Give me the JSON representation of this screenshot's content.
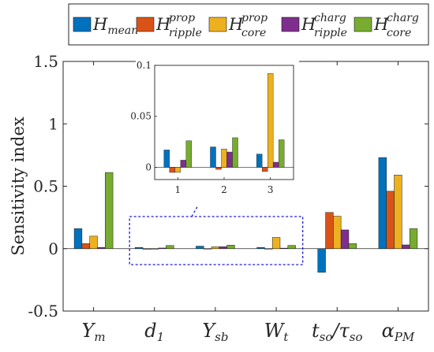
{
  "chart_data": {
    "type": "bar",
    "ylabel": "Sensitivity index",
    "ylim": [
      -0.5,
      1.5
    ],
    "yticks": [
      {
        "value": 1.5,
        "label": "1.5"
      },
      {
        "value": 1.0,
        "label": "1"
      },
      {
        "value": 0.5,
        "label": "0.5"
      },
      {
        "value": 0.0,
        "label": "0"
      },
      {
        "value": -0.5,
        "label": "-0.5"
      }
    ],
    "categories": [
      {
        "base": "Y",
        "sub": "m"
      },
      {
        "base": "d",
        "sub": "1"
      },
      {
        "base": "Y",
        "sub": "sb"
      },
      {
        "base": "W",
        "sub": "t"
      },
      {
        "base": "t",
        "sub": "so",
        "slash": "/τ",
        "sub2": "so"
      },
      {
        "base": "α",
        "sub": "PM"
      }
    ],
    "legend_position": "top",
    "series": [
      {
        "key": "mean",
        "name": {
          "base": "H",
          "sub": "mean",
          "sup": ""
        },
        "color": "#0072BD",
        "values": [
          0.16,
          0.01,
          0.02,
          0.01,
          -0.19,
          0.73
        ]
      },
      {
        "key": "ripple_prop",
        "name": {
          "base": "H",
          "sub": "ripple",
          "sup": "prop"
        },
        "color": "#D95319",
        "values": [
          0.04,
          -0.005,
          0.0,
          -0.004,
          0.29,
          0.46
        ]
      },
      {
        "key": "core_prop",
        "name": {
          "base": "H",
          "sub": "core",
          "sup": "prop"
        },
        "color": "#EDB120",
        "values": [
          0.1,
          -0.005,
          0.015,
          0.09,
          0.26,
          0.59
        ]
      },
      {
        "key": "ripple_charg",
        "name": {
          "base": "H",
          "sub": "ripple",
          "sup": "charg"
        },
        "color": "#7E2F8E",
        "values": [
          0.01,
          0.005,
          0.015,
          0.004,
          0.15,
          0.03
        ]
      },
      {
        "key": "core_charg",
        "name": {
          "base": "H",
          "sub": "core",
          "sup": "charg"
        },
        "color": "#77AC30",
        "values": [
          0.61,
          0.025,
          0.028,
          0.026,
          0.04,
          0.16
        ]
      }
    ],
    "inset": {
      "categories": [
        "1",
        "2",
        "3"
      ],
      "ylim": [
        -0.012,
        0.1
      ],
      "yticks": [
        {
          "value": 0.1,
          "label": "0.1"
        },
        {
          "value": 0.05,
          "label": "0.05"
        },
        {
          "value": 0.0,
          "label": "0"
        }
      ],
      "series_values": [
        [
          0.017,
          0.02,
          0.013
        ],
        [
          -0.005,
          -0.002,
          -0.004
        ],
        [
          -0.005,
          0.018,
          0.092
        ],
        [
          0.007,
          0.015,
          0.005
        ],
        [
          0.026,
          0.029,
          0.027
        ]
      ]
    }
  }
}
